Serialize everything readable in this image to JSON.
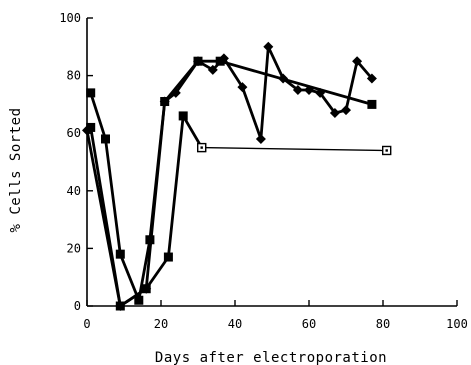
{
  "chart_data": {
    "type": "line",
    "title": "",
    "xlabel": "Days after electroporation",
    "ylabel": "% Cells Sorted",
    "xlim": [
      0,
      100
    ],
    "ylim": [
      0,
      100
    ],
    "x_ticks": [
      0,
      20,
      40,
      60,
      80,
      100
    ],
    "y_ticks": [
      0,
      20,
      40,
      60,
      80,
      100
    ],
    "grid": false,
    "legend": "none",
    "series": [
      {
        "marker": "filled-square",
        "line": "bold",
        "x": [
          1,
          5,
          9,
          14,
          17,
          21,
          30,
          36,
          77
        ],
        "y": [
          74,
          58,
          18,
          2,
          23,
          71,
          85,
          85,
          70
        ]
      },
      {
        "marker": "filled-square",
        "line": "bold",
        "x": [
          1,
          9,
          16,
          22,
          26,
          31
        ],
        "y": [
          62,
          0,
          6,
          17,
          66,
          55
        ]
      },
      {
        "marker": "open-square",
        "line": "thin",
        "x": [
          31,
          81
        ],
        "y": [
          55,
          54
        ]
      },
      {
        "marker": "filled-diamond",
        "line": "bold",
        "x": [
          0,
          9,
          16,
          21,
          24,
          30,
          34,
          37,
          42,
          47,
          49,
          53,
          57,
          60,
          63,
          67,
          70,
          73,
          77
        ],
        "y": [
          61,
          0,
          6,
          71,
          74,
          85,
          82,
          86,
          76,
          58,
          90,
          79,
          75,
          75,
          74,
          67,
          68,
          85,
          79
        ]
      }
    ]
  }
}
